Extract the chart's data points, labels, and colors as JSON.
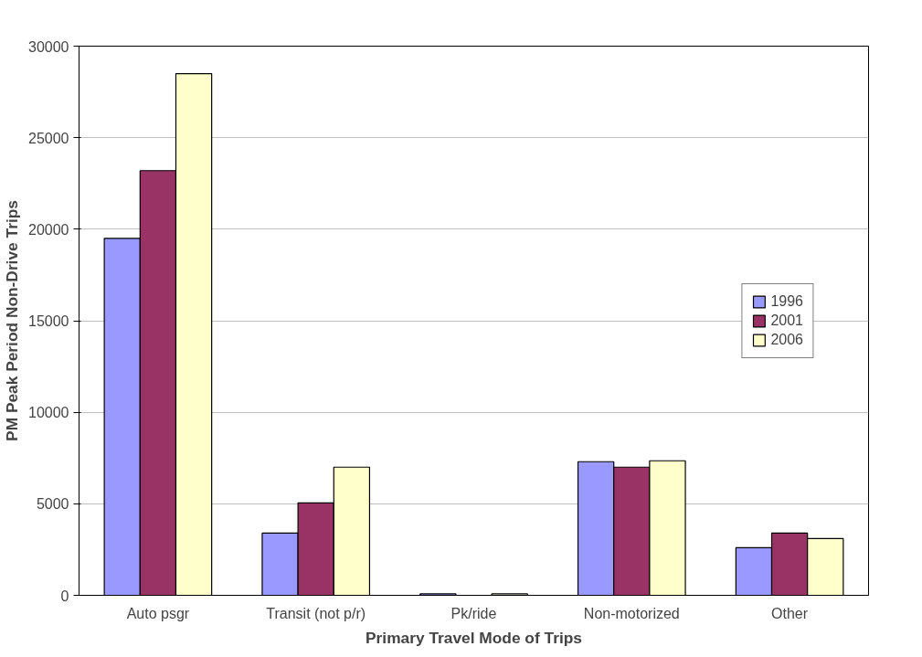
{
  "chart_data": {
    "type": "bar",
    "xlabel": "Primary Travel Mode of Trips",
    "ylabel": "PM Peak Period Non-Drive Trips",
    "categories": [
      "Auto psgr",
      "Transit (not p/r)",
      "Pk/ride",
      "Non-motorized",
      "Other"
    ],
    "series": [
      {
        "name": "1996",
        "color": "#9999ff",
        "values": [
          19500,
          3400,
          80,
          7300,
          2600
        ]
      },
      {
        "name": "2001",
        "color": "#993366",
        "values": [
          23200,
          5050,
          null,
          7000,
          3400
        ]
      },
      {
        "name": "2006",
        "color": "#ffffcc",
        "values": [
          28500,
          7000,
          80,
          7350,
          3100
        ]
      }
    ],
    "ylim": [
      0,
      30000
    ],
    "yticks": [
      0,
      5000,
      10000,
      15000,
      20000,
      25000,
      30000
    ],
    "grid": "y",
    "legend": "right"
  }
}
